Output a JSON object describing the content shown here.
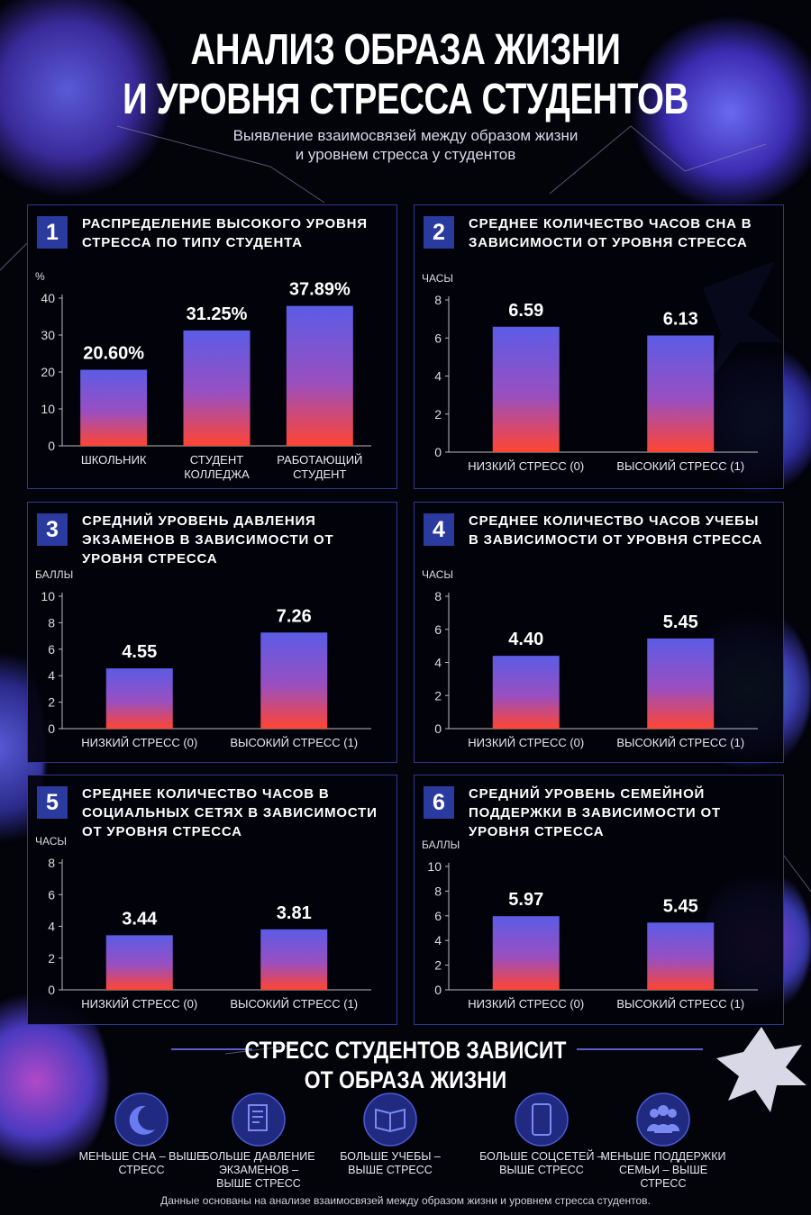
{
  "header": {
    "title_lines": [
      "АНАЛИЗ ОБРАЗА ЖИЗНИ",
      "И УРОВНЯ СТРЕССА СТУДЕНТОВ"
    ],
    "subtitle_lines": [
      "Выявление взаимосвязей между образом жизни",
      "и уровнем стресса у студентов"
    ]
  },
  "chart_data": [
    {
      "type": "bar",
      "number": "1",
      "title": "РАСПРЕДЕЛЕНИЕ ВЫСОКОГО УРОВНЯ СТРЕССА ПО ТИПУ СТУДЕНТА",
      "y_label": "%",
      "categories": [
        "ШКОЛЬНИК",
        "СТУДЕНТ КОЛЛЕДЖА",
        "РАБОТАЮЩИЙ СТУДЕНТ"
      ],
      "values": [
        20.6,
        31.25,
        37.89
      ],
      "value_labels": [
        "20.60%",
        "31.25%",
        "37.89%"
      ],
      "ylim": [
        0,
        40
      ],
      "yticks": [
        0,
        10,
        20,
        30,
        40
      ]
    },
    {
      "type": "bar",
      "number": "2",
      "title": "СРЕДНЕЕ КОЛИЧЕСТВО ЧАСОВ СНА В ЗАВИСИМОСТИ ОТ УРОВНЯ СТРЕССА",
      "y_label": "ЧАСЫ",
      "categories": [
        "НИЗКИЙ СТРЕСС (0)",
        "ВЫСОКИЙ СТРЕСС (1)"
      ],
      "values": [
        6.59,
        6.13
      ],
      "ylim": [
        0,
        8
      ],
      "yticks": [
        0,
        2,
        4,
        6,
        8
      ]
    },
    {
      "type": "bar",
      "number": "3",
      "title": "СРЕДНИЙ УРОВЕНЬ ДАВЛЕНИЯ ЭКЗАМЕНОВ В ЗАВИСИМОСТИ ОТ УРОВНЯ СТРЕССА",
      "y_label": "БАЛЛЫ",
      "categories": [
        "НИЗКИЙ СТРЕСС (0)",
        "ВЫСОКИЙ СТРЕСС (1)"
      ],
      "values": [
        4.55,
        7.26
      ],
      "ylim": [
        0,
        10
      ],
      "yticks": [
        0,
        2,
        4,
        6,
        8,
        10
      ]
    },
    {
      "type": "bar",
      "number": "4",
      "title": "СРЕДНЕЕ КОЛИЧЕСТВО ЧАСОВ УЧЕБЫ В ЗАВИСИМОСТИ ОТ УРОВНЯ СТРЕССА",
      "y_label": "ЧАСЫ",
      "categories": [
        "НИЗКИЙ СТРЕСС (0)",
        "ВЫСОКИЙ СТРЕСС (1)"
      ],
      "values": [
        4.4,
        5.45
      ],
      "value_labels": [
        "4.40",
        "5.45"
      ],
      "ylim": [
        0,
        8
      ],
      "yticks": [
        0,
        2,
        4,
        6,
        8
      ]
    },
    {
      "type": "bar",
      "number": "5",
      "title": "СРЕДНЕЕ КОЛИЧЕСТВО ЧАСОВ В СОЦИАЛЬНЫХ СЕТЯХ В ЗАВИСИМОСТИ ОТ УРОВНЯ СТРЕССА",
      "y_label": "ЧАСЫ",
      "categories": [
        "НИЗКИЙ СТРЕСС (0)",
        "ВЫСОКИЙ СТРЕСС (1)"
      ],
      "values": [
        3.44,
        3.81
      ],
      "ylim": [
        0,
        8
      ],
      "yticks": [
        0,
        2,
        4,
        6,
        8
      ]
    },
    {
      "type": "bar",
      "number": "6",
      "title": "СРЕДНИЙ УРОВЕНЬ СЕМЕЙНОЙ ПОДДЕРЖКИ В ЗАВИСИМОСТИ ОТ УРОВНЯ СТРЕССА",
      "y_label": "БАЛЛЫ",
      "categories": [
        "НИЗКИЙ СТРЕСС (0)",
        "ВЫСОКИЙ СТРЕСС (1)"
      ],
      "values": [
        5.97,
        5.45
      ],
      "ylim": [
        0,
        10
      ],
      "yticks": [
        0,
        2,
        4,
        6,
        8,
        10
      ]
    }
  ],
  "conclusion": {
    "title_lines": [
      "СТРЕСС СТУДЕНТОВ ЗАВИСИТ",
      "ОТ ОБРАЗА ЖИЗНИ"
    ],
    "items": [
      "МЕНЬШЕ СНА – ВЫШЕ СТРЕСС",
      "БОЛЬШЕ ДАВЛЕНИЕ ЭКЗАМЕНОВ – ВЫШЕ СТРЕСС",
      "БОЛЬШЕ УЧЕБЫ – ВЫШЕ СТРЕСС",
      "БОЛЬШЕ СОЦСЕТЕЙ – ВЫШЕ СТРЕСС",
      "МЕНЬШЕ ПОДДЕРЖКИ СЕМЬИ – ВЫШЕ СТРЕСС"
    ],
    "note": "Данные основаны на анализе взаимосвязей между образом жизни и уровнем стресса студентов."
  }
}
